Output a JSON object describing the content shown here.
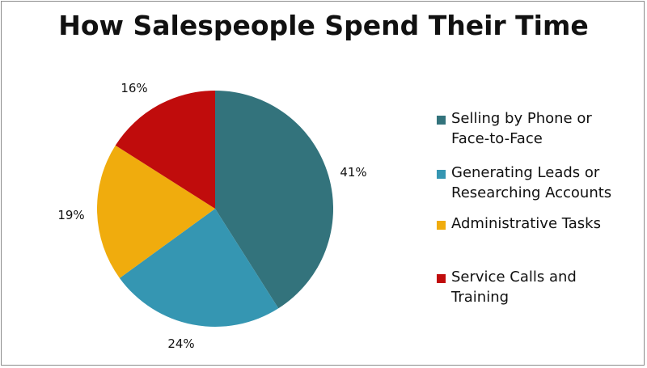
{
  "chart_data": {
    "type": "pie",
    "title": "How Salespeople Spend Their Time",
    "series": [
      {
        "name": "Selling by Phone or Face-to-Face",
        "value": 41,
        "label": "41%",
        "color": "#33737c"
      },
      {
        "name": "Generating Leads or Researching Accounts",
        "value": 24,
        "label": "24%",
        "color": "#3596b2"
      },
      {
        "name": "Administrative Tasks",
        "value": 19,
        "label": "19%",
        "color": "#f0ac0d"
      },
      {
        "name": "Service Calls and Training",
        "value": 16,
        "label": "16%",
        "color": "#c00c0c"
      }
    ],
    "legend_lines": [
      [
        "Selling by Phone or",
        "Face-to-Face"
      ],
      [
        "Generating Leads or",
        "Researching Accounts"
      ],
      [
        "Administrative Tasks"
      ],
      [
        "Service Calls and",
        "Training"
      ]
    ],
    "legend_position": "right"
  }
}
